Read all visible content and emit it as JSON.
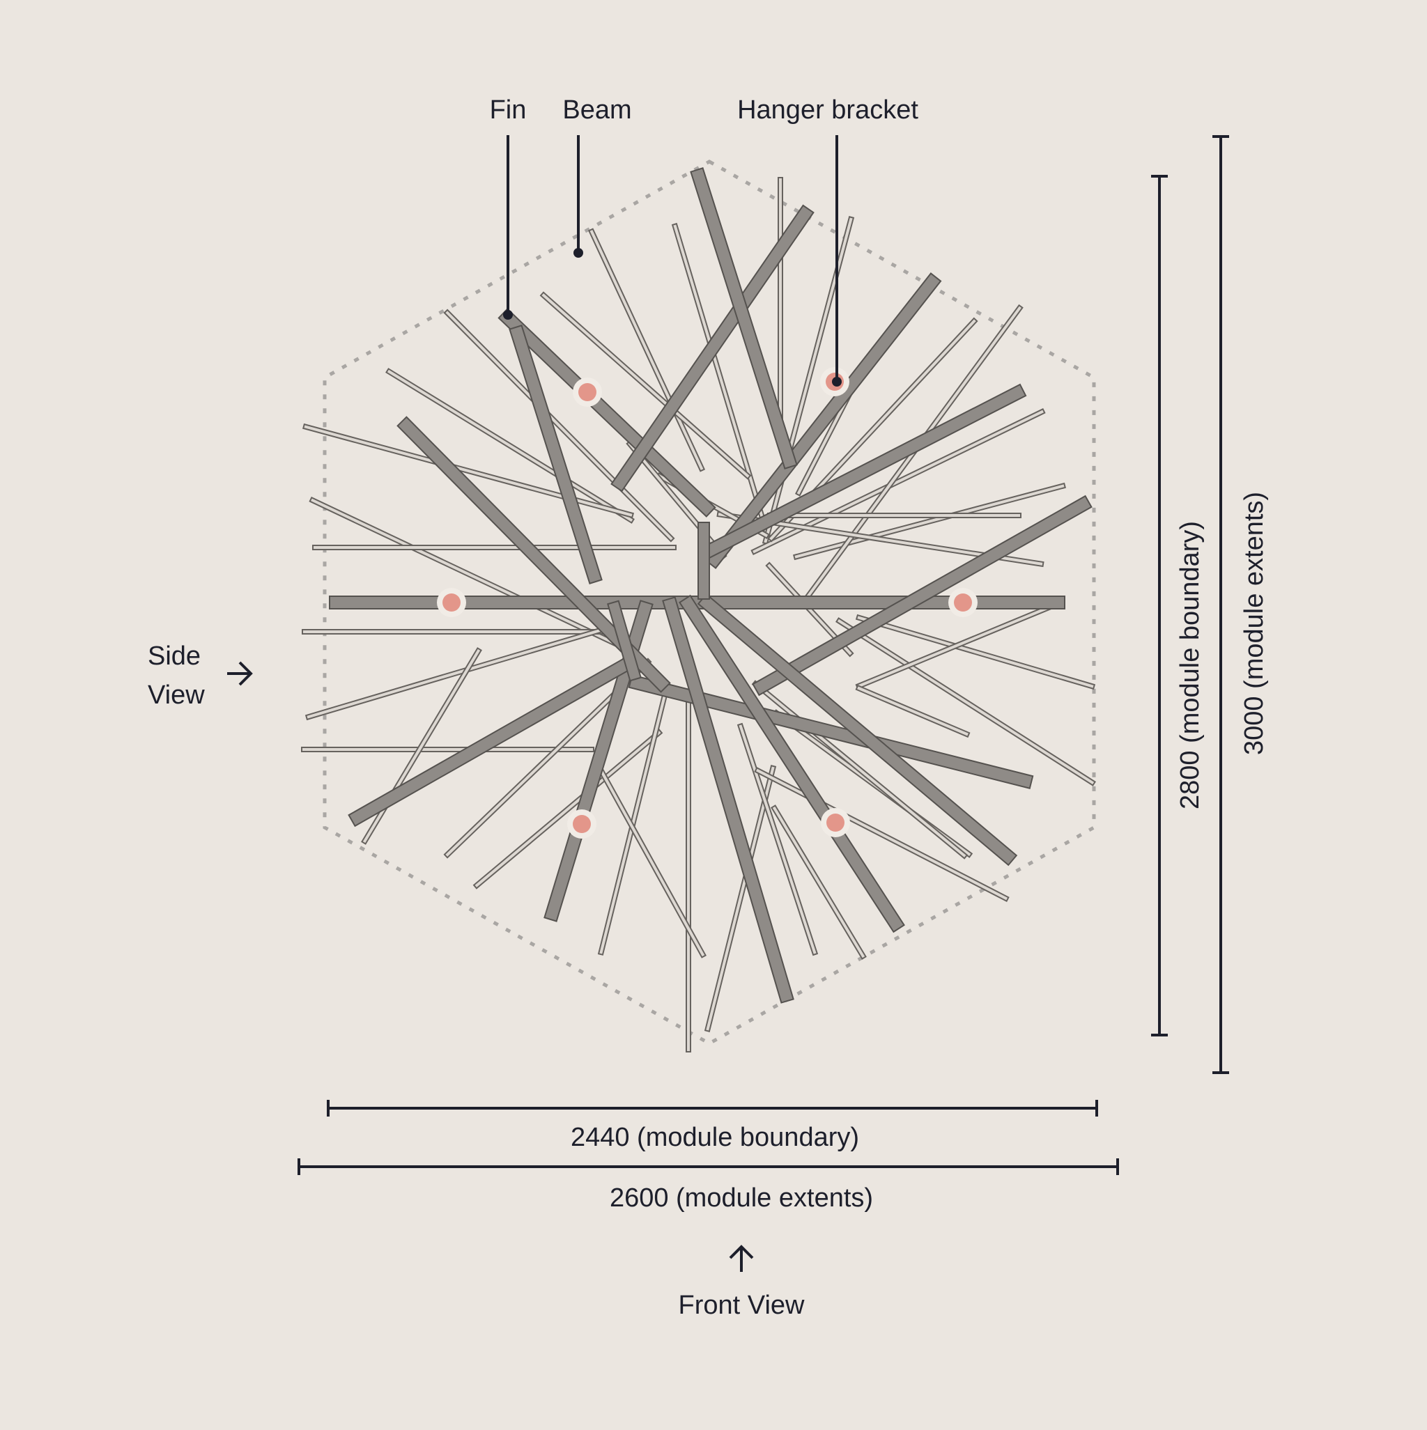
{
  "callouts": {
    "fin": "Fin",
    "beam": "Beam",
    "hanger_bracket": "Hanger bracket"
  },
  "dimensions": {
    "width_boundary": "2440 (module boundary)",
    "width_extents": "2600 (module extents)",
    "height_boundary": "2800 (module boundary)",
    "height_extents": "3000 (module extents)"
  },
  "views": {
    "side_line1": "Side",
    "side_line2": "View",
    "front": "Front View",
    "side_arrow_icon": "arrow-right-icon",
    "front_arrow_icon": "arrow-up-icon"
  },
  "colors": {
    "background": "#ebe6e0",
    "ink": "#1d1f2b",
    "beam": "#8f8b87",
    "fin": "#ddd8d2",
    "bracket": "#e3968a",
    "boundary_dash": "#a9a6a3"
  }
}
